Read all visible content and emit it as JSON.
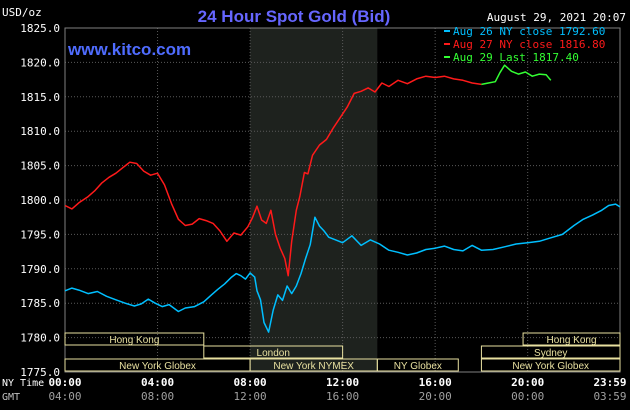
{
  "chart_data": {
    "type": "line",
    "title": "24 Hour Spot Gold (Bid)",
    "ylabel": "USD/oz",
    "watermark": "www.kitco.com",
    "timestamp": "August 29, 2021 20:07",
    "ylim": [
      1775.0,
      1825.0
    ],
    "y_ticks": [
      "1825.0",
      "1820.0",
      "1815.0",
      "1810.0",
      "1805.0",
      "1800.0",
      "1795.0",
      "1790.0",
      "1785.0",
      "1780.0",
      "1775.0"
    ],
    "x_ticks_ny": [
      "00:00",
      "04:00",
      "08:00",
      "12:00",
      "16:00",
      "20:00",
      "23:59"
    ],
    "x_ticks_gmt": [
      "04:00",
      "08:00",
      "12:00",
      "16:00",
      "20:00",
      "00:00",
      "03:59"
    ],
    "axis_row_labels": [
      "NY Time",
      "GMT"
    ],
    "colors": {
      "background": "#000000",
      "title": "#6666ff",
      "aug26": "#00bfff",
      "aug27": "#ff1a1a",
      "aug29": "#33ff33",
      "grid": "#5a5a5a",
      "session_shade": "#1e221e",
      "session_box": "#e8e0a0",
      "axis_text": "#ffffff"
    },
    "legend": [
      {
        "label": "Aug 26 NY close 1792.60",
        "color": "#00bfff"
      },
      {
        "label": "Aug 27 NY close 1816.80",
        "color": "#ff1a1a"
      },
      {
        "label": "Aug 29 Last 1817.40",
        "color": "#33ff33"
      }
    ],
    "legend_placement": "top-right",
    "sessions": [
      {
        "name": "Hong Kong",
        "start_hour": 0.0,
        "end_hour": 6.0,
        "row": 0
      },
      {
        "name": "London",
        "start_hour": 6.0,
        "end_hour": 12.0,
        "row": 1
      },
      {
        "name": "New York Globex",
        "start_hour": 0.0,
        "end_hour": 8.0,
        "row": 2
      },
      {
        "name": "New York NYMEX",
        "start_hour": 8.0,
        "end_hour": 13.5,
        "row": 2
      },
      {
        "name": "NY Globex",
        "start_hour": 13.5,
        "end_hour": 17.0,
        "row": 2
      },
      {
        "name": "Hong Kong",
        "start_hour": 19.8,
        "end_hour": 23.99,
        "row": 0
      },
      {
        "name": "Sydney",
        "start_hour": 18.0,
        "end_hour": 23.99,
        "row": 1
      },
      {
        "name": "New York Globex",
        "start_hour": 18.0,
        "end_hour": 23.99,
        "row": 2
      }
    ],
    "shaded_period": [
      8.0,
      13.5
    ],
    "series": [
      {
        "name": "Aug 26 NY close 1792.60",
        "color": "#00bfff",
        "x": [
          0,
          0.3,
          0.6,
          1.0,
          1.4,
          1.8,
          2.2,
          2.6,
          3.0,
          3.3,
          3.6,
          3.9,
          4.2,
          4.5,
          4.9,
          5.2,
          5.6,
          6.0,
          6.3,
          6.6,
          6.9,
          7.2,
          7.4,
          7.6,
          7.8,
          8.0,
          8.2,
          8.3,
          8.45,
          8.6,
          8.8,
          9.0,
          9.2,
          9.4,
          9.6,
          9.8,
          10.0,
          10.2,
          10.4,
          10.6,
          10.8,
          11.0,
          11.2,
          11.4,
          11.7,
          12.0,
          12.4,
          12.8,
          13.2,
          13.6,
          14.0,
          14.4,
          14.8,
          15.2,
          15.6,
          16.0,
          16.4,
          16.8,
          17.2,
          17.6,
          18.0,
          18.5,
          19.0,
          19.5,
          20.0,
          20.5,
          21.0,
          21.5,
          22.0,
          22.4,
          22.8,
          23.2,
          23.5,
          23.8,
          23.99
        ],
        "values": [
          1786.8,
          1787.2,
          1786.9,
          1786.4,
          1786.7,
          1786.0,
          1785.5,
          1785.0,
          1784.6,
          1784.9,
          1785.6,
          1785.0,
          1784.5,
          1784.8,
          1783.8,
          1784.3,
          1784.5,
          1785.2,
          1786.1,
          1787.0,
          1787.8,
          1788.8,
          1789.3,
          1789.0,
          1788.5,
          1789.4,
          1788.8,
          1786.8,
          1785.5,
          1782.2,
          1780.8,
          1784.0,
          1786.2,
          1785.4,
          1787.5,
          1786.4,
          1787.5,
          1789.3,
          1791.5,
          1793.5,
          1797.5,
          1796.2,
          1795.5,
          1794.6,
          1794.2,
          1793.8,
          1794.8,
          1793.4,
          1794.2,
          1793.6,
          1792.7,
          1792.4,
          1792.0,
          1792.3,
          1792.8,
          1793.0,
          1793.3,
          1792.8,
          1792.6,
          1793.4,
          1792.7,
          1792.8,
          1793.2,
          1793.6,
          1793.8,
          1794.0,
          1794.5,
          1795.0,
          1796.3,
          1797.2,
          1797.8,
          1798.5,
          1799.2,
          1799.4,
          1799.0
        ]
      },
      {
        "name": "Aug 27 NY close 1816.80",
        "color": "#ff1a1a",
        "x": [
          0,
          0.3,
          0.6,
          1.0,
          1.3,
          1.6,
          1.9,
          2.2,
          2.5,
          2.8,
          3.1,
          3.4,
          3.7,
          4.0,
          4.3,
          4.6,
          4.9,
          5.2,
          5.5,
          5.8,
          6.1,
          6.4,
          6.7,
          7.0,
          7.3,
          7.6,
          7.9,
          8.1,
          8.3,
          8.5,
          8.7,
          8.9,
          9.1,
          9.3,
          9.5,
          9.65,
          9.8,
          10.0,
          10.15,
          10.35,
          10.5,
          10.7,
          11.0,
          11.3,
          11.6,
          11.9,
          12.2,
          12.5,
          12.8,
          13.1,
          13.4,
          13.7,
          14.0,
          14.4,
          14.8,
          15.2,
          15.6,
          16.0,
          16.4,
          16.8,
          17.2,
          17.6,
          18.0
        ],
        "values": [
          1799.2,
          1798.7,
          1799.6,
          1800.5,
          1801.4,
          1802.5,
          1803.3,
          1803.9,
          1804.7,
          1805.5,
          1805.3,
          1804.2,
          1803.6,
          1803.9,
          1802.2,
          1799.5,
          1797.2,
          1796.3,
          1796.5,
          1797.3,
          1797.0,
          1796.6,
          1795.5,
          1794.0,
          1795.2,
          1794.9,
          1796.1,
          1797.4,
          1799.1,
          1797.1,
          1796.6,
          1798.5,
          1795.0,
          1793.0,
          1791.5,
          1789.0,
          1794.0,
          1798.5,
          1800.5,
          1804.0,
          1803.8,
          1806.5,
          1808.0,
          1808.8,
          1810.5,
          1812.0,
          1813.5,
          1815.5,
          1815.8,
          1816.3,
          1815.7,
          1817.0,
          1816.5,
          1817.4,
          1816.9,
          1817.6,
          1818.0,
          1817.8,
          1818.0,
          1817.6,
          1817.4,
          1817.0,
          1816.8
        ]
      },
      {
        "name": "Aug 29 Last 1817.40",
        "color": "#33ff33",
        "x": [
          18.0,
          18.3,
          18.6,
          18.8,
          19.0,
          19.3,
          19.6,
          19.9,
          20.2,
          20.5,
          20.8,
          21.0
        ],
        "values": [
          1816.8,
          1817.0,
          1817.2,
          1818.5,
          1819.6,
          1818.7,
          1818.3,
          1818.6,
          1818.0,
          1818.3,
          1818.2,
          1817.4
        ]
      }
    ]
  }
}
